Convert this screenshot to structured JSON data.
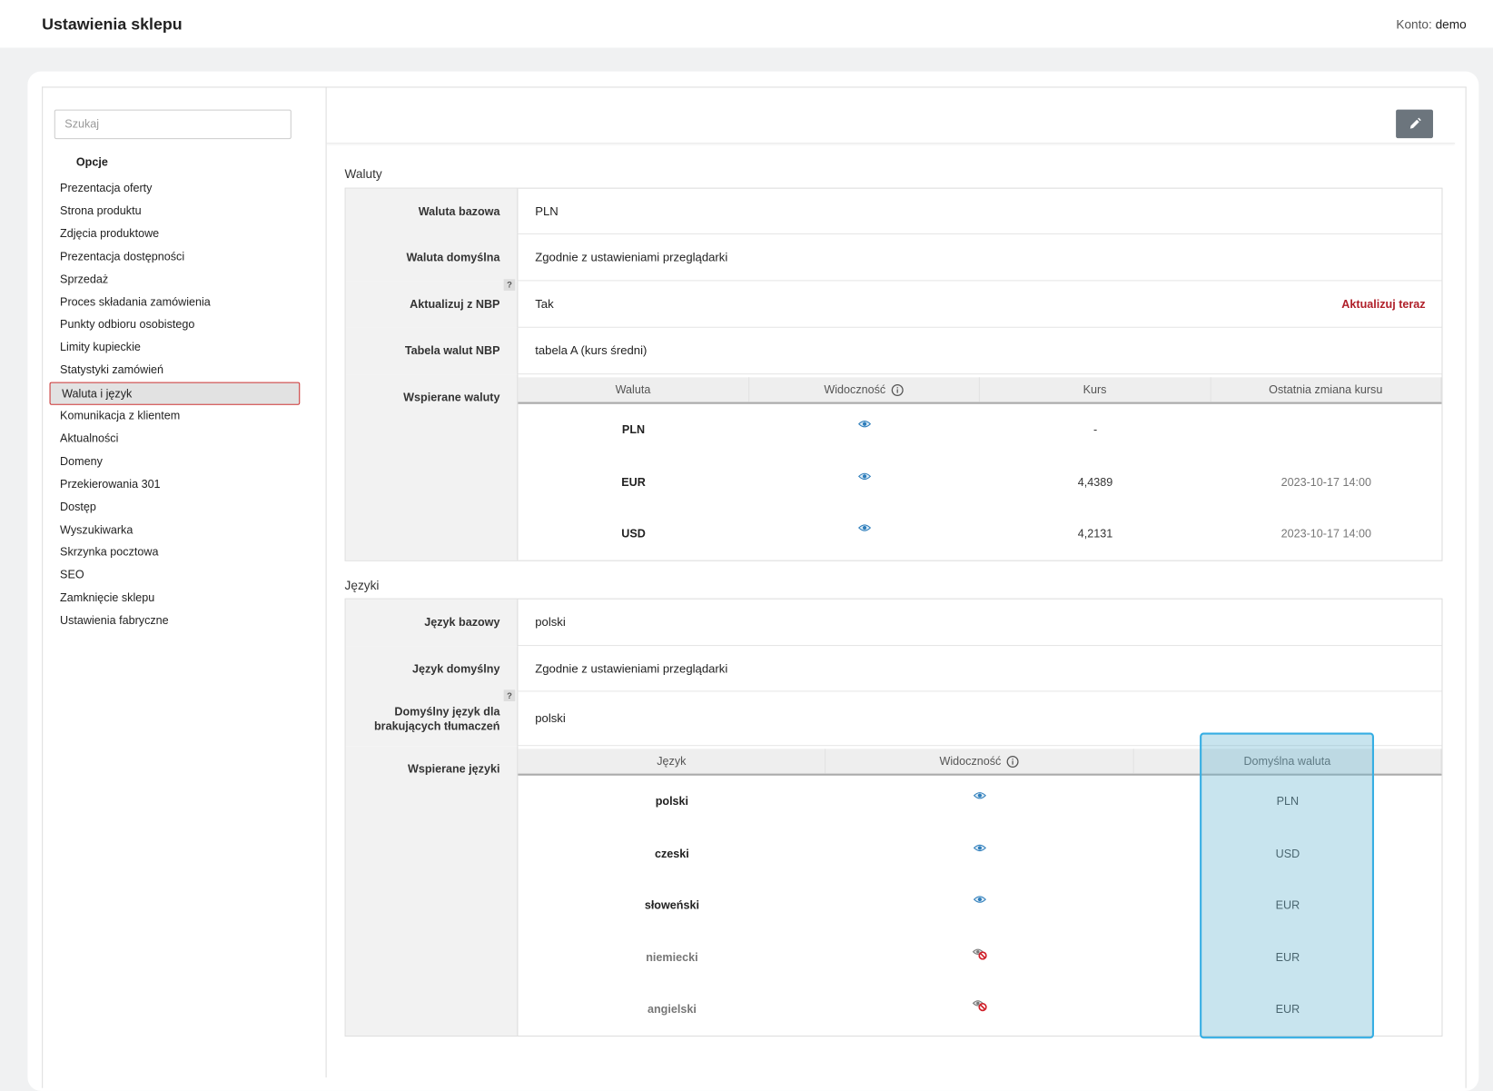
{
  "header": {
    "title": "Ustawienia sklepu",
    "account_label": "Konto:",
    "account": "demo"
  },
  "sidebar": {
    "search_placeholder": "Szukaj",
    "heading": "Opcje",
    "active": 9,
    "items": [
      "Prezentacja oferty",
      "Strona produktu",
      "Zdjęcia produktowe",
      "Prezentacja dostępności",
      "Sprzedaż",
      "Proces składania zamówienia",
      "Punkty odbioru osobistego",
      "Limity kupieckie",
      "Statystyki zamówień",
      "Waluta i język",
      "Komunikacja z klientem",
      "Aktualności",
      "Domeny",
      "Przekierowania 301",
      "Dostęp",
      "Wyszukiwarka",
      "Skrzynka pocztowa",
      "SEO",
      "Zamknięcie sklepu",
      "Ustawienia fabryczne"
    ]
  },
  "currencies": {
    "title": "Waluty",
    "fields": [
      {
        "label": "Waluta bazowa",
        "value": "PLN"
      },
      {
        "label": "Waluta domyślna",
        "value": "Zgodnie z ustawieniami przeglądarki"
      },
      {
        "label": "Aktualizuj z NBP",
        "value": "Tak",
        "action": "Aktualizuj teraz",
        "help": "?"
      },
      {
        "label": "Tabela walut NBP",
        "value": "tabela A (kurs średni)"
      }
    ],
    "table_label": "Wspierane waluty",
    "columns": [
      "Waluta",
      "Widoczność",
      "Kurs",
      "Ostatnia zmiana kursu"
    ],
    "rows": [
      {
        "code": "PLN",
        "visible": true,
        "rate": "-"
      },
      {
        "code": "EUR",
        "visible": true,
        "rate": "4,4389",
        "changed": "2023-10-17 14:00"
      },
      {
        "code": "USD",
        "visible": true,
        "rate": "4,2131",
        "changed": "2023-10-17 14:00"
      }
    ]
  },
  "languages": {
    "title": "Języki",
    "fields": [
      {
        "label": "Język bazowy",
        "value": "polski"
      },
      {
        "label": "Język domyślny",
        "value": "Zgodnie z ustawieniami przeglądarki"
      },
      {
        "label": "Domyślny język dla brakujących tłumaczeń",
        "value": "polski",
        "help": "?"
      }
    ],
    "table_label": "Wspierane języki",
    "columns": [
      "Język",
      "Widoczność",
      "Domyślna waluta"
    ],
    "highlight_column": 2,
    "rows": [
      {
        "name": "polski",
        "visible": true,
        "currency": "PLN"
      },
      {
        "name": "czeski",
        "visible": true,
        "currency": "USD"
      },
      {
        "name": "słoweński",
        "visible": true,
        "currency": "EUR"
      },
      {
        "name": "niemiecki",
        "visible": false,
        "currency": "EUR"
      },
      {
        "name": "angielski",
        "visible": false,
        "currency": "EUR"
      }
    ]
  }
}
